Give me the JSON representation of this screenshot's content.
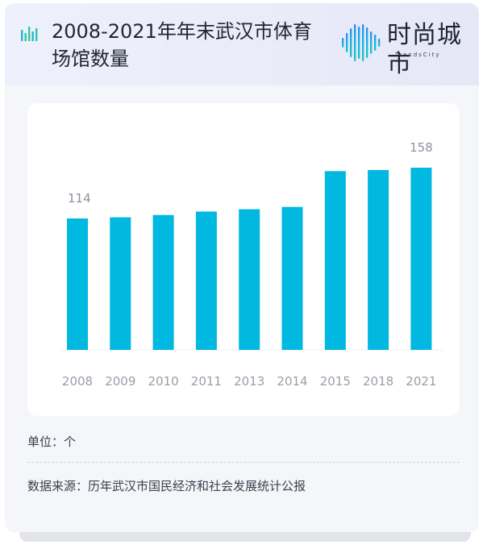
{
  "header": {
    "title": "2008-2021年年末武汉市体育场馆数量",
    "logo_text": "时尚城市",
    "logo_subtext": "TrendsCity"
  },
  "icons": {
    "title_icon": "bar-chart-icon",
    "logo_icon": "sound-wave-logo-icon"
  },
  "colors": {
    "bar": "#00b8e0",
    "tick_label": "#9a9eaa",
    "data_label": "#8e929e"
  },
  "chart_data": {
    "type": "bar",
    "title": "2008-2021年年末武汉市体育场馆数量",
    "categories": [
      "2008",
      "2009",
      "2010",
      "2011",
      "2013",
      "2014",
      "2015",
      "2018",
      "2021"
    ],
    "values": [
      114,
      115,
      117,
      120,
      122,
      124,
      155,
      156,
      158
    ],
    "data_labels": [
      {
        "index": 0,
        "text": "114"
      },
      {
        "index": 8,
        "text": "158"
      }
    ],
    "ylim": [
      0,
      158
    ],
    "grid": false,
    "legend": "none"
  },
  "footer": {
    "unit": "单位：个",
    "source": "数据来源：历年武汉市国民经济和社会发展统计公报"
  }
}
